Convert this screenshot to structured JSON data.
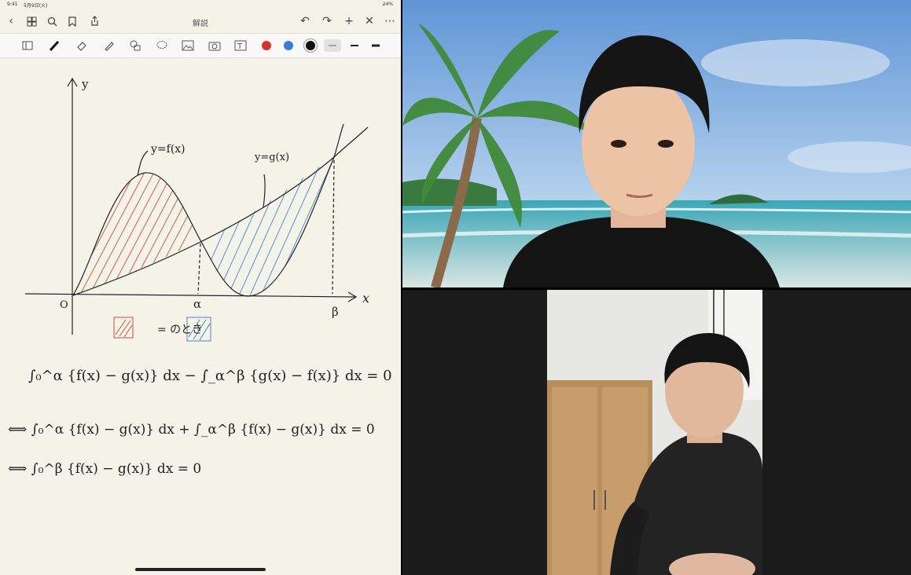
{
  "status_bar": {
    "time": "9:41",
    "date": "5月9日(火)",
    "battery": "24%"
  },
  "notes_app": {
    "title": "解説",
    "nav_icons": [
      "back-icon",
      "grid-icon",
      "search-icon",
      "bookmark-icon",
      "share-icon"
    ],
    "right_icons": [
      "undo-icon",
      "redo-icon",
      "add-icon",
      "close-icon",
      "more-icon"
    ],
    "tools": [
      "layout-icon",
      "pen-icon",
      "eraser-icon",
      "highlighter-icon",
      "shapes-icon",
      "lasso-icon",
      "image-icon",
      "camera-icon",
      "text-icon"
    ],
    "colors": [
      "#d9322b",
      "#3a7bd5",
      "#111111"
    ],
    "handwriting": {
      "y_axis": "y",
      "x_axis": "x",
      "origin": "O",
      "alpha": "α",
      "beta": "β",
      "f_label": "y=f(x)",
      "g_label": "y=g(x)",
      "condition": "= のとき",
      "eq1": "∫₀^α {f(x) − g(x)} dx  −  ∫_α^β {g(x) − f(x)} dx = 0",
      "eq2": "⟺ ∫₀^α {f(x) − g(x)} dx + ∫_α^β {f(x) − g(x)} dx = 0",
      "eq3": "⟺ ∫₀^β {f(x) − g(x)} dx = 0"
    }
  },
  "video": {
    "top_tile": "teacher-video",
    "bottom_tile": "student-video"
  }
}
